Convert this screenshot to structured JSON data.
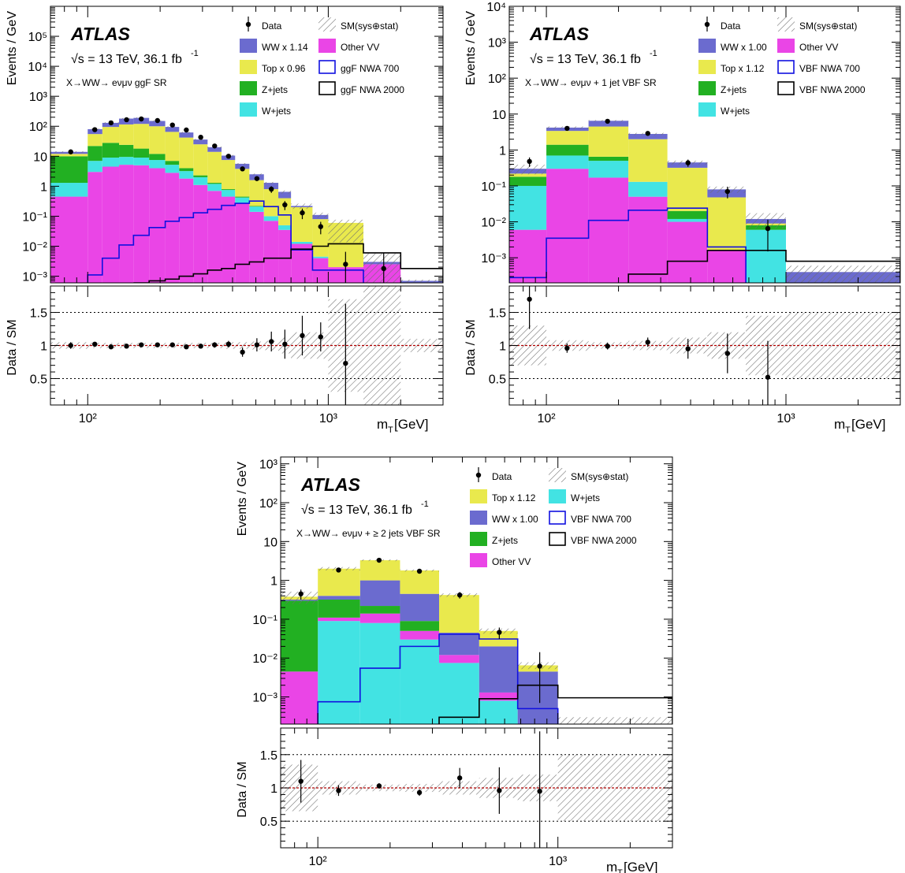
{
  "colors": {
    "ww": "#6b6bcf",
    "top": "#e9e94d",
    "zjets": "#22b022",
    "wjets": "#42e3e3",
    "othervv": "#ea45e6",
    "nwa700": "#1010e0",
    "nwa2000": "#000000",
    "ratio_line": "#b00000"
  },
  "chart_data": [
    {
      "type": "bar",
      "id": "ggf",
      "atlas": "ATLAS",
      "energy": "√s = 13 TeV, 36.1 fb",
      "energy_sup": "-1",
      "region": "X→WW→ eνμν ggF SR",
      "ylabel": "Events / GeV",
      "ratio_ylabel": "Data / SM",
      "xlabel": "m",
      "xlabel_sub": "T",
      "xlabel_unit": " [GeV]",
      "xscale": "log",
      "yscale": "log",
      "xlim": [
        70,
        3000
      ],
      "ylim": [
        0.0006,
        1000000
      ],
      "ratio_ylim": [
        0.1,
        1.9
      ],
      "yticks": [
        "10⁻³",
        "10⁻²",
        "10⁻¹",
        "1",
        "10",
        "10²",
        "10³",
        "10⁴",
        "10⁵"
      ],
      "xticks": [
        "10²",
        "10³"
      ],
      "ratio_yticks": [
        "0.5",
        "1",
        "1.5"
      ],
      "legend": [
        {
          "key": "data",
          "label": "Data",
          "kind": "marker"
        },
        {
          "key": "band",
          "label": "SM(sys⊕stat)",
          "kind": "hatch"
        },
        {
          "key": "ww",
          "label": "WW x 1.14",
          "kind": "fill"
        },
        {
          "key": "othervv",
          "label": "Other VV",
          "kind": "fill"
        },
        {
          "key": "top",
          "label": "Top x 0.96",
          "kind": "fill"
        },
        {
          "key": "nwa700",
          "label": "ggF NWA 700",
          "kind": "line"
        },
        {
          "key": "zjets",
          "label": "Z+jets",
          "kind": "fill"
        },
        {
          "key": "nwa2000",
          "label": "ggF NWA 2000",
          "kind": "line"
        },
        {
          "key": "wjets",
          "label": "W+jets",
          "kind": "fill"
        }
      ],
      "legend_cols": 2,
      "bin_edges": [
        70,
        100,
        115,
        135,
        155,
        180,
        210,
        240,
        275,
        315,
        360,
        410,
        470,
        540,
        620,
        700,
        860,
        1000,
        1400,
        2000,
        3000
      ],
      "stack": [
        {
          "key": "othervv",
          "values": [
            0.45,
            3.0,
            4.5,
            5.2,
            5.0,
            4.0,
            2.8,
            1.8,
            1.1,
            0.7,
            0.45,
            0.28,
            0.14,
            0.07,
            0.035,
            0.012,
            0.004,
            0.002,
            0.0025,
            null
          ]
        },
        {
          "key": "wjets",
          "values": [
            1.3,
            7.0,
            9.0,
            9.5,
            9.0,
            7.5,
            5.2,
            3.2,
            2.0,
            1.2,
            0.75,
            0.42,
            0.21,
            0.1,
            0.05,
            0.014,
            0.0045,
            0.002,
            0.0025,
            null
          ]
        },
        {
          "key": "zjets",
          "values": [
            10,
            22,
            28,
            24,
            18,
            12,
            7,
            4,
            2.3,
            1.3,
            0.8,
            0.45,
            0.22,
            0.1,
            0.05,
            0.014,
            0.0045,
            0.002,
            0.0025,
            null
          ]
        },
        {
          "key": "top",
          "values": [
            12,
            55,
            95,
            115,
            120,
            100,
            65,
            42,
            25,
            14,
            7.5,
            3.8,
            1.6,
            0.8,
            0.4,
            0.2,
            0.08,
            0.06,
            0.0025,
            null
          ]
        },
        {
          "key": "ww",
          "values": [
            14,
            80,
            130,
            180,
            190,
            150,
            95,
            62,
            36,
            20,
            10.5,
            5.6,
            2.5,
            1.3,
            0.65,
            0.22,
            0.11,
            0.045,
            0.003,
            0.0007
          ]
        }
      ],
      "signals": [
        {
          "key": "nwa700",
          "values": [
            null,
            0.0011,
            0.004,
            0.011,
            0.023,
            0.042,
            0.068,
            0.09,
            0.13,
            0.17,
            0.23,
            0.27,
            0.32,
            0.21,
            0.11,
            0.0075,
            0.0016,
            0.0016,
            null,
            null
          ]
        },
        {
          "key": "nwa2000",
          "values": [
            null,
            null,
            null,
            null,
            0.0005,
            0.0007,
            0.0008,
            0.001,
            0.0012,
            0.0016,
            0.0018,
            0.0025,
            0.003,
            0.004,
            0.004,
            0.008,
            0.01,
            0.012,
            0.006,
            0.0018
          ]
        }
      ],
      "data": {
        "x": [
          85,
          107,
          125,
          145,
          167,
          195,
          225,
          257,
          295,
          337,
          385,
          440,
          505,
          580,
          660,
          780,
          930,
          1180,
          1700
        ],
        "y": [
          14,
          77,
          130,
          165,
          175,
          155,
          110,
          75,
          43,
          22,
          10,
          3.8,
          1.8,
          0.8,
          0.24,
          0.13,
          0.045,
          0.0025,
          0.0018
        ],
        "err_lo": [
          1.5,
          5,
          6,
          6,
          6,
          5,
          4,
          3,
          2,
          1.3,
          0.8,
          0.5,
          0.3,
          0.2,
          0.08,
          0.05,
          0.02,
          null,
          null
        ],
        "err_hi": [
          1.5,
          5,
          6,
          6,
          6,
          5,
          4,
          3,
          2,
          1.3,
          0.8,
          0.5,
          0.3,
          0.2,
          0.08,
          0.05,
          0.02,
          0.004,
          0.004
        ]
      },
      "ratio": {
        "x": [
          85,
          107,
          125,
          145,
          167,
          195,
          225,
          257,
          295,
          337,
          385,
          440,
          505,
          580,
          660,
          780,
          930,
          1180,
          1700
        ],
        "y": [
          1.0,
          1.02,
          0.98,
          0.99,
          1.01,
          1.01,
          1.01,
          0.98,
          0.99,
          1.01,
          1.02,
          0.9,
          1.01,
          1.06,
          1.02,
          1.15,
          1.13,
          0.73,
          0.73
        ],
        "err": [
          0.05,
          0.03,
          0.03,
          0.03,
          0.03,
          0.03,
          0.03,
          0.03,
          0.03,
          0.04,
          0.05,
          0.07,
          0.1,
          0.15,
          0.22,
          0.3,
          0.22,
          0.9,
          0.9
        ],
        "band": [
          0.05,
          0.04,
          0.04,
          0.04,
          0.04,
          0.04,
          0.04,
          0.04,
          0.04,
          0.04,
          0.05,
          0.05,
          0.06,
          0.07,
          0.12,
          0.2,
          0.2,
          0.7,
          0.9,
          0.1
        ]
      },
      "skip_ratio_points": [
        18
      ]
    },
    {
      "type": "bar",
      "id": "vbf1",
      "atlas": "ATLAS",
      "energy": "√s = 13 TeV, 36.1 fb",
      "energy_sup": "-1",
      "region": "X→WW→ eνμν + 1 jet VBF SR",
      "ylabel": "Events / GeV",
      "ratio_ylabel": "Data / SM",
      "xlabel": "m",
      "xlabel_sub": "T",
      "xlabel_unit": " [GeV]",
      "xscale": "log",
      "yscale": "log",
      "xlim": [
        70,
        3000
      ],
      "ylim": [
        0.0002,
        10000
      ],
      "ratio_ylim": [
        0.1,
        1.9
      ],
      "yticks": [
        "10⁻³",
        "10⁻²",
        "10⁻¹",
        "1",
        "10",
        "10²",
        "10³",
        "10⁴"
      ],
      "xticks": [
        "10²",
        "10³"
      ],
      "ratio_yticks": [
        "0.5",
        "1",
        "1.5"
      ],
      "legend": [
        {
          "key": "data",
          "label": "Data",
          "kind": "marker"
        },
        {
          "key": "band",
          "label": "SM(sys⊕stat)",
          "kind": "hatch"
        },
        {
          "key": "ww",
          "label": "WW x 1.00",
          "kind": "fill"
        },
        {
          "key": "othervv",
          "label": "Other VV",
          "kind": "fill"
        },
        {
          "key": "top",
          "label": "Top x 1.12",
          "kind": "fill"
        },
        {
          "key": "nwa700",
          "label": "VBF NWA 700",
          "kind": "line"
        },
        {
          "key": "zjets",
          "label": "Z+jets",
          "kind": "fill"
        },
        {
          "key": "nwa2000",
          "label": "VBF NWA 2000",
          "kind": "line"
        },
        {
          "key": "wjets",
          "label": "W+jets",
          "kind": "fill"
        }
      ],
      "legend_cols": 2,
      "bin_edges": [
        70,
        100,
        150,
        220,
        320,
        470,
        680,
        1000,
        3000
      ],
      "stack": [
        {
          "key": "othervv",
          "values": [
            0.006,
            0.3,
            0.17,
            0.05,
            0.01,
            0.0016,
            null,
            null
          ]
        },
        {
          "key": "wjets",
          "values": [
            0.1,
            0.7,
            0.5,
            0.13,
            0.012,
            0.0016,
            0.006,
            null
          ]
        },
        {
          "key": "zjets",
          "values": [
            0.18,
            1.4,
            0.65,
            0.13,
            0.02,
            0.0016,
            0.008,
            null
          ]
        },
        {
          "key": "top",
          "values": [
            0.22,
            3.4,
            4.5,
            2.0,
            0.32,
            0.048,
            0.009,
            null
          ]
        },
        {
          "key": "ww",
          "values": [
            0.3,
            4.2,
            6.5,
            2.8,
            0.45,
            0.08,
            0.012,
            0.0004
          ]
        }
      ],
      "signals": [
        {
          "key": "nwa700",
          "values": [
            0.00028,
            0.0035,
            0.011,
            0.021,
            0.024,
            0.002,
            null,
            null
          ]
        },
        {
          "key": "nwa2000",
          "values": [
            null,
            null,
            null,
            0.00035,
            0.0008,
            0.0016,
            0.0016,
            0.0008
          ]
        }
      ],
      "data": {
        "x": [
          85,
          122,
          180,
          265,
          390,
          570,
          840
        ],
        "y": [
          0.48,
          4.0,
          6.3,
          2.9,
          0.44,
          0.07,
          0.0065
        ],
        "err_lo": [
          0.14,
          0.5,
          0.6,
          0.4,
          0.1,
          0.025,
          0.005
        ],
        "err_hi": [
          0.14,
          0.5,
          0.6,
          0.4,
          0.1,
          0.025,
          0.005
        ]
      },
      "ratio": {
        "x": [
          85,
          122,
          180,
          265,
          390,
          570,
          840
        ],
        "y": [
          1.7,
          0.96,
          0.99,
          1.05,
          0.95,
          0.88,
          0.52
        ],
        "err": [
          0.45,
          0.07,
          0.05,
          0.07,
          0.15,
          0.3,
          0.55
        ],
        "band": [
          0.3,
          0.08,
          0.05,
          0.07,
          0.12,
          0.2,
          0.45,
          0.5
        ]
      },
      "skip_ratio_points": []
    },
    {
      "type": "bar",
      "id": "vbf2",
      "atlas": "ATLAS",
      "energy": "√s = 13 TeV, 36.1 fb",
      "energy_sup": "-1",
      "region": "X→WW→ eνμν + ≥ 2 jets VBF SR",
      "ylabel": "Events / GeV",
      "ratio_ylabel": "Data / SM",
      "xlabel": "m",
      "xlabel_sub": "T",
      "xlabel_unit": " [GeV]",
      "xscale": "log",
      "yscale": "log",
      "xlim": [
        70,
        3000
      ],
      "ylim": [
        0.0002,
        1500
      ],
      "ratio_ylim": [
        0.1,
        1.9
      ],
      "yticks": [
        "10⁻³",
        "10⁻²",
        "10⁻¹",
        "1",
        "10",
        "10²",
        "10³"
      ],
      "xticks": [
        "10²",
        "10³"
      ],
      "ratio_yticks": [
        "0.5",
        "1",
        "1.5"
      ],
      "legend": [
        {
          "key": "data",
          "label": "Data",
          "kind": "marker"
        },
        {
          "key": "band",
          "label": "SM(sys⊕stat)",
          "kind": "hatch"
        },
        {
          "key": "top",
          "label": "Top x 1.12",
          "kind": "fill"
        },
        {
          "key": "wjets",
          "label": "W+jets",
          "kind": "fill"
        },
        {
          "key": "ww",
          "label": "WW x 1.00",
          "kind": "fill"
        },
        {
          "key": "nwa700",
          "label": "VBF NWA 700",
          "kind": "line"
        },
        {
          "key": "zjets",
          "label": "Z+jets",
          "kind": "fill"
        },
        {
          "key": "nwa2000",
          "label": "VBF NWA 2000",
          "kind": "line"
        },
        {
          "key": "othervv",
          "label": "Other VV",
          "kind": "fill"
        }
      ],
      "legend_cols": 2,
      "bin_edges": [
        70,
        100,
        150,
        220,
        320,
        470,
        680,
        1000,
        3000
      ],
      "stack": [
        {
          "key": "wjets",
          "values": [
            null,
            0.09,
            0.08,
            0.03,
            0.0075,
            0.0008,
            null,
            null
          ]
        },
        {
          "key": "othervv",
          "values": [
            0.0045,
            0.11,
            0.14,
            0.05,
            0.012,
            0.0013,
            null,
            null
          ]
        },
        {
          "key": "zjets",
          "values": [
            0.3,
            0.32,
            0.22,
            0.09,
            0.012,
            0.0013,
            null,
            null
          ]
        },
        {
          "key": "ww",
          "values": [
            0.32,
            0.4,
            1.0,
            0.45,
            0.045,
            0.02,
            0.0045,
            0.0002
          ]
        },
        {
          "key": "top",
          "values": [
            0.38,
            2.0,
            3.3,
            1.8,
            0.42,
            0.05,
            0.0065,
            null
          ]
        }
      ],
      "signals": [
        {
          "key": "nwa700",
          "values": [
            null,
            0.00075,
            0.0055,
            0.02,
            0.041,
            0.031,
            0.0005,
            null
          ]
        },
        {
          "key": "nwa2000",
          "values": [
            null,
            null,
            null,
            null,
            0.0003,
            0.0009,
            0.002,
            0.00095
          ]
        }
      ],
      "data": {
        "x": [
          85,
          122,
          180,
          265,
          390,
          570,
          840
        ],
        "y": [
          0.45,
          1.85,
          3.3,
          1.72,
          0.42,
          0.046,
          0.0062
        ],
        "err_lo": [
          0.13,
          0.2,
          0.35,
          0.2,
          0.08,
          0.015,
          0.0055
        ],
        "err_hi": [
          0.13,
          0.2,
          0.35,
          0.2,
          0.08,
          0.015,
          0.008
        ]
      },
      "ratio": {
        "x": [
          85,
          122,
          180,
          265,
          390,
          570,
          840
        ],
        "y": [
          1.1,
          0.96,
          1.03,
          0.93,
          1.15,
          0.96,
          0.95
        ],
        "err": [
          0.32,
          0.08,
          0.04,
          0.05,
          0.15,
          0.35,
          0.9
        ],
        "band": [
          0.35,
          0.1,
          0.05,
          0.06,
          0.1,
          0.15,
          0.2,
          0.5
        ]
      },
      "skip_ratio_points": []
    }
  ]
}
